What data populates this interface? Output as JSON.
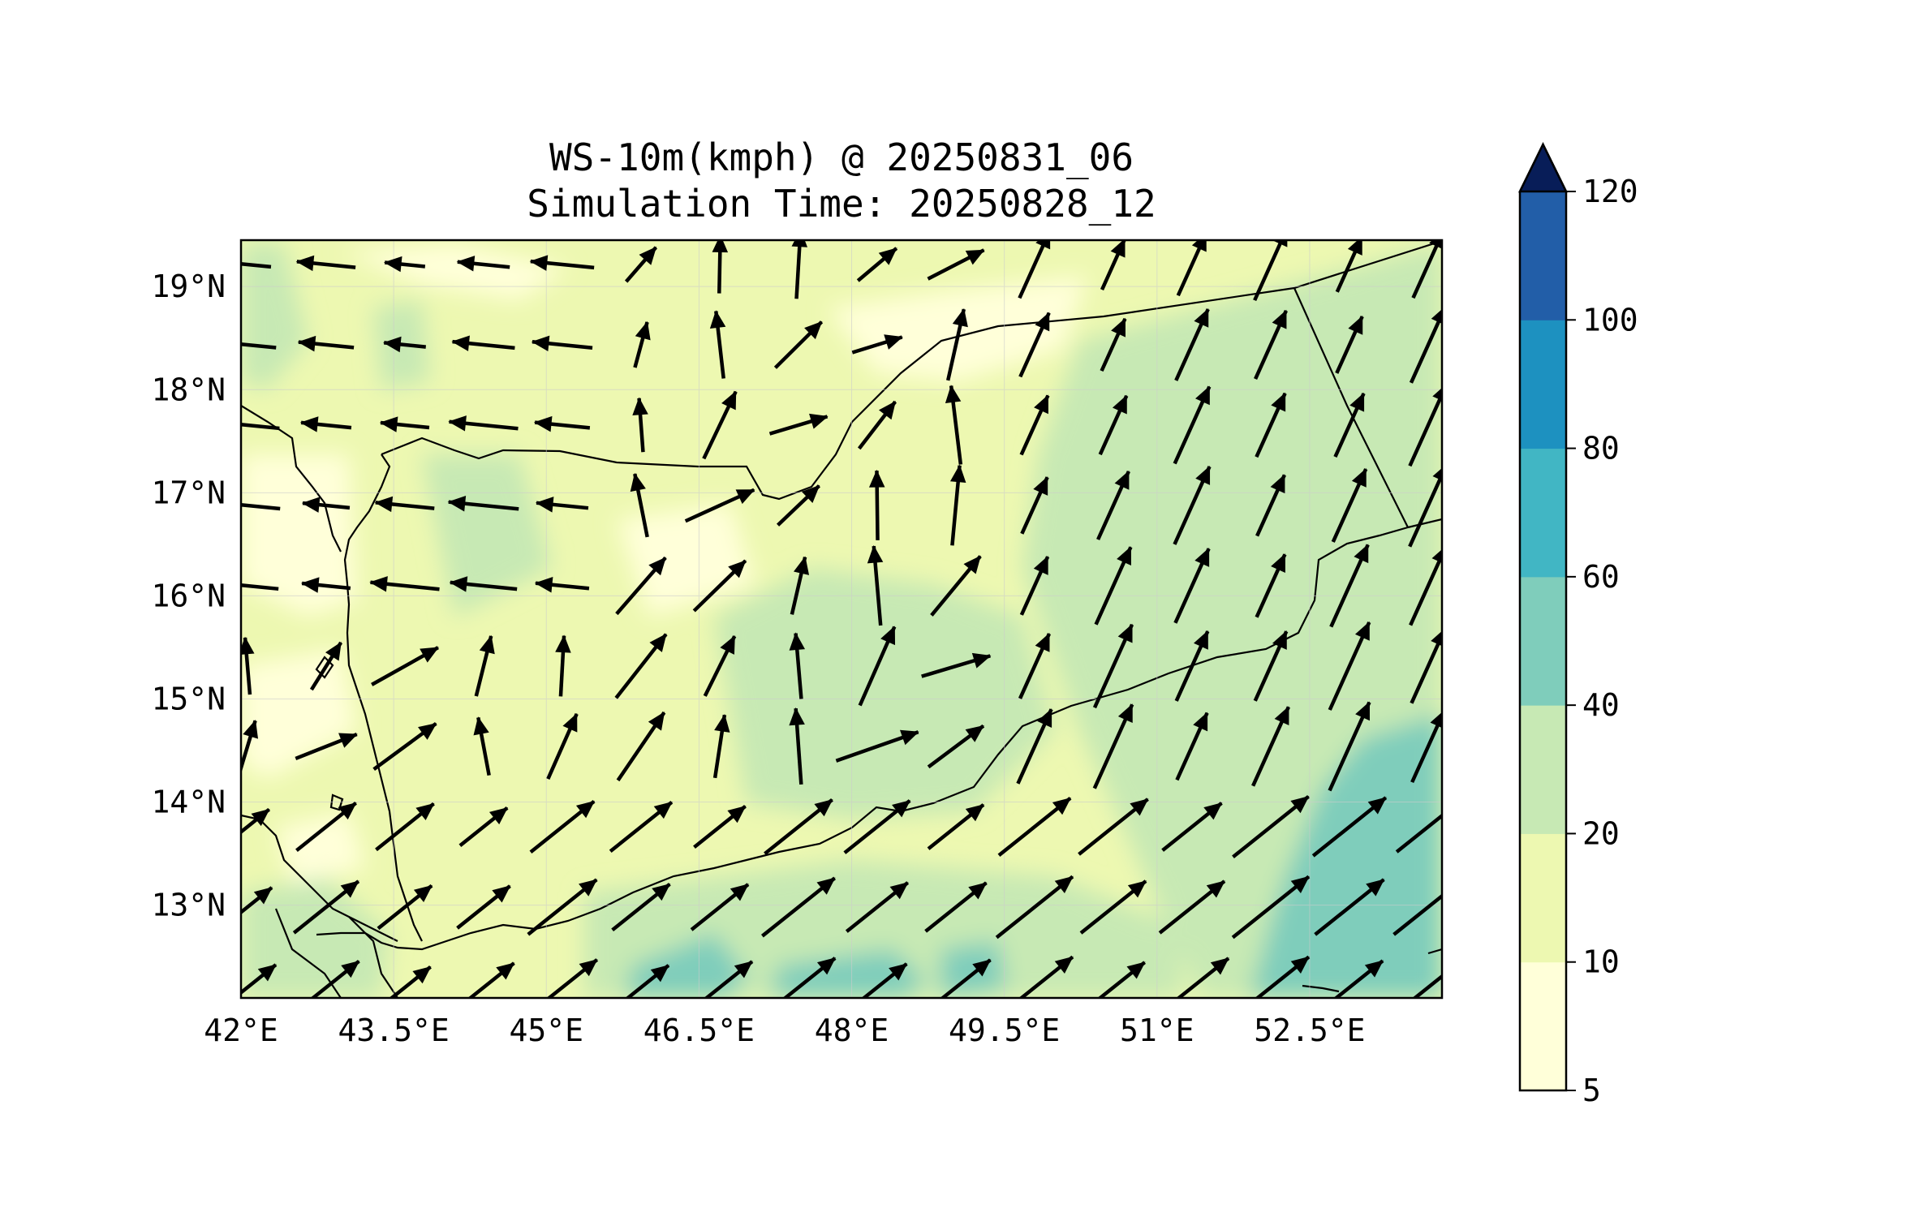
{
  "title_line1": "WS-10m(kmph) @ 20250831_06",
  "title_line2": "Simulation Time: 20250828_12",
  "map": {
    "lon_range": [
      42.0,
      53.8
    ],
    "lat_range": [
      12.1,
      19.45
    ],
    "lon_ticks": [
      {
        "value": 42.0,
        "label": "42°E"
      },
      {
        "value": 43.5,
        "label": "43.5°E"
      },
      {
        "value": 45.0,
        "label": "45°E"
      },
      {
        "value": 46.5,
        "label": "46.5°E"
      },
      {
        "value": 48.0,
        "label": "48°E"
      },
      {
        "value": 49.5,
        "label": "49.5°E"
      },
      {
        "value": 51.0,
        "label": "51°E"
      },
      {
        "value": 52.5,
        "label": "52.5°E"
      }
    ],
    "lat_ticks": [
      {
        "value": 19,
        "label": "19°N"
      },
      {
        "value": 18,
        "label": "18°N"
      },
      {
        "value": 17,
        "label": "17°N"
      },
      {
        "value": 16,
        "label": "16°N"
      },
      {
        "value": 15,
        "label": "15°N"
      },
      {
        "value": 14,
        "label": "14°N"
      },
      {
        "value": 13,
        "label": "13°N"
      }
    ],
    "gridlines": true
  },
  "colorbar": {
    "levels": [
      {
        "value": 5,
        "label": "5"
      },
      {
        "value": 10,
        "label": "10"
      },
      {
        "value": 20,
        "label": "20"
      },
      {
        "value": 40,
        "label": "40"
      },
      {
        "value": 60,
        "label": "60"
      },
      {
        "value": 80,
        "label": "80"
      },
      {
        "value": 100,
        "label": "100"
      },
      {
        "value": 120,
        "label": "120"
      }
    ],
    "colors": [
      "#ffffd9",
      "#edf8b1",
      "#c7e9b4",
      "#7fcdbb",
      "#41b6c4",
      "#1d91c0",
      "#225ea8",
      "#253494"
    ],
    "extend_color": "#081d58"
  }
}
